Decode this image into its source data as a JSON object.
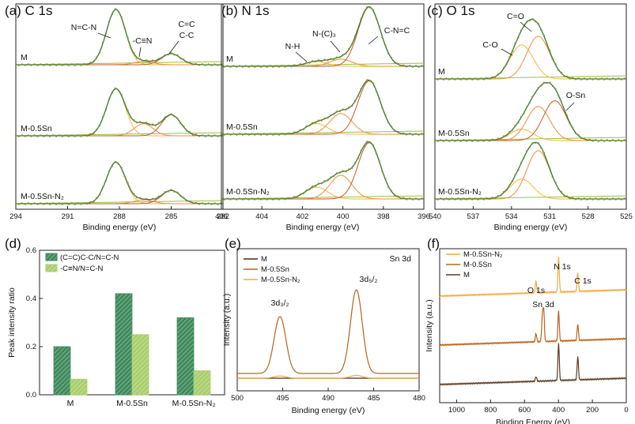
{
  "panels": [
    {
      "id": "a",
      "label": "(a) C 1s",
      "type": "xps_spectrum",
      "xlabel": "Binding energy (eV)",
      "xlim": [
        294,
        282
      ],
      "xticks": [
        "294",
        "291",
        "288",
        "285",
        "282"
      ],
      "samples": [
        "M",
        "M-0.5Sn",
        "M-0.5Sn-N₂"
      ],
      "annotations": [
        "N=C-N",
        "-C≡N",
        "C=C",
        "C-C"
      ],
      "peaks": [
        {
          "name": "N=C-N",
          "center": 288.2,
          "heights": [
            1.0,
            0.85,
            0.75
          ]
        },
        {
          "name": "-C≡N",
          "center": 286.6,
          "heights": [
            0.06,
            0.22,
            0.07
          ]
        },
        {
          "name": "C=C/C-C",
          "center": 285.0,
          "heights": [
            0.2,
            0.38,
            0.24
          ]
        }
      ]
    },
    {
      "id": "b",
      "label": "(b) N 1s",
      "type": "xps_spectrum",
      "xlabel": "Binding energy (eV)",
      "xlim": [
        406,
        396
      ],
      "xticks": [
        "406",
        "404",
        "402",
        "400",
        "398",
        "396"
      ],
      "samples": [
        "M",
        "M-0.5Sn",
        "M-0.5Sn-N₂"
      ],
      "annotations": [
        "N-H",
        "N-(C)₃",
        "C-N=C"
      ],
      "peaks": [
        {
          "name": "N-H",
          "center": 401.3,
          "heights": [
            0.08,
            0.18,
            0.2
          ]
        },
        {
          "name": "N-(C)3",
          "center": 400.1,
          "heights": [
            0.12,
            0.35,
            0.4
          ]
        },
        {
          "name": "C-N=C",
          "center": 398.7,
          "heights": [
            1.0,
            0.9,
            0.95
          ]
        }
      ]
    },
    {
      "id": "c",
      "label": "(c) O 1s",
      "type": "xps_spectrum",
      "xlabel": "Binding energy (eV)",
      "xlim": [
        540,
        525
      ],
      "xticks": [
        "540",
        "537",
        "534",
        "531",
        "528",
        "525"
      ],
      "samples": [
        "M",
        "M-0.5Sn",
        "M-0.5Sn-N₂"
      ],
      "annotations": [
        "C=O",
        "C-O",
        "O-Sn"
      ],
      "peaks": [
        {
          "name": "C-O",
          "center": 533.2,
          "heights": [
            0.6,
            0.2,
            0.35
          ]
        },
        {
          "name": "C=O",
          "center": 531.9,
          "heights": [
            0.75,
            0.6,
            0.85
          ]
        },
        {
          "name": "O-Sn",
          "center": 530.6,
          "heights": [
            0.0,
            0.7,
            0.0
          ]
        }
      ]
    }
  ],
  "chart_data": [
    {
      "id": "d",
      "label": "(d)",
      "type": "bar",
      "categories": [
        "M",
        "M-0.5Sn",
        "M-0.5Sn-N₂"
      ],
      "series": [
        {
          "name": "(C=C)C-C/N=C-N",
          "values": [
            0.2,
            0.42,
            0.32
          ],
          "color": "#3f8a5c"
        },
        {
          "name": "-C≡N/N=C-N",
          "values": [
            0.065,
            0.25,
            0.1
          ],
          "color": "#a9cf6c"
        }
      ],
      "xlabel": "",
      "ylabel": "Peak intensity ratio",
      "ylim": [
        0,
        0.6
      ],
      "yticks": [
        "0.0",
        "0.2",
        "0.4",
        "0.6"
      ]
    },
    {
      "id": "e",
      "label": "(e)",
      "type": "line",
      "title": "Sn 3d",
      "xlabel": "Binding energy (eV)",
      "ylabel": "Intensity (a.u.)",
      "xlim": [
        500,
        480
      ],
      "xticks": [
        "500",
        "495",
        "490",
        "485",
        "480"
      ],
      "series": [
        {
          "name": "M",
          "color": "#4a2a14",
          "peaks": []
        },
        {
          "name": "M-0.5Sn",
          "color": "#b5651d",
          "peaks": [
            {
              "center": 495.3,
              "height": 1.0
            },
            {
              "center": 486.9,
              "height": 1.47
            }
          ]
        },
        {
          "name": "M-0.5Sn-N₂",
          "color": "#f5a940",
          "peaks": [
            {
              "center": 495.3,
              "height": 0.04
            },
            {
              "center": 486.9,
              "height": 0.05
            }
          ]
        }
      ],
      "annotations": [
        "3d₃/₂",
        "3d₅/₂"
      ]
    },
    {
      "id": "f",
      "label": "(f)",
      "type": "line",
      "xlabel": "Binding Energy (eV)",
      "ylabel": "Intensity (a.u.)",
      "xlim": [
        1100,
        0
      ],
      "xticks": [
        "1000",
        "800",
        "600",
        "400",
        "200",
        "0"
      ],
      "series": [
        {
          "name": "M-0.5Sn-N₂",
          "color": "#f5a940",
          "peaks": [
            {
              "center": 532,
              "height": 0.5
            },
            {
              "center": 399,
              "height": 1.5
            },
            {
              "center": 286,
              "height": 0.8
            }
          ]
        },
        {
          "name": "M-0.5Sn",
          "color": "#b5651d",
          "peaks": [
            {
              "center": 532,
              "height": 0.35
            },
            {
              "center": 495,
              "height": 1.0
            },
            {
              "center": 487,
              "height": 1.3
            },
            {
              "center": 399,
              "height": 1.3
            },
            {
              "center": 286,
              "height": 0.7
            }
          ]
        },
        {
          "name": "M",
          "color": "#5a3a20",
          "peaks": [
            {
              "center": 532,
              "height": 0.2
            },
            {
              "center": 399,
              "height": 1.6
            },
            {
              "center": 286,
              "height": 1.0
            }
          ]
        }
      ],
      "annotations": [
        "O 1s",
        "N 1s",
        "C 1s",
        "Sn 3d"
      ]
    }
  ]
}
